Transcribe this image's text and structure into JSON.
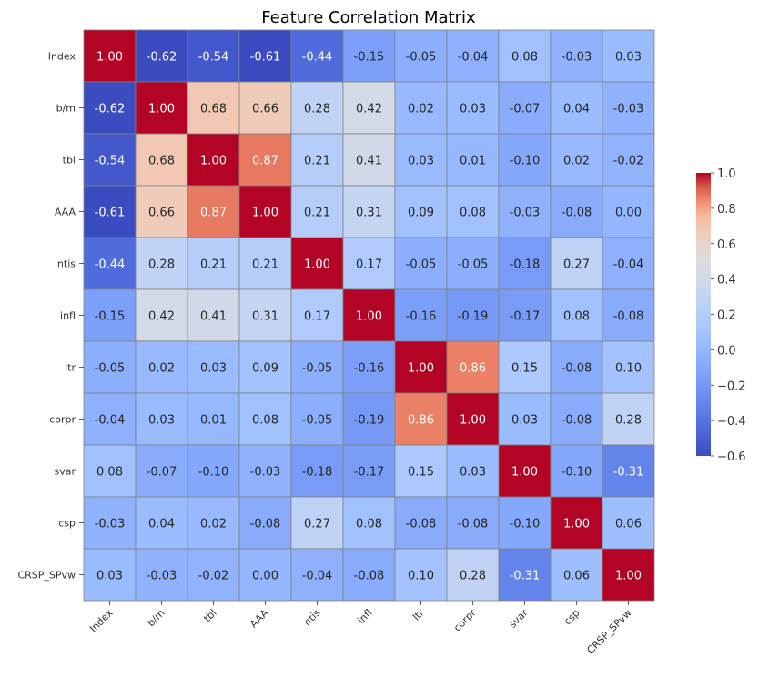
{
  "chart_data": {
    "type": "heatmap",
    "title": "Feature Correlation Matrix",
    "labels": [
      "Index",
      "b/m",
      "tbl",
      "AAA",
      "ntis",
      "infl",
      "ltr",
      "corpr",
      "svar",
      "csp",
      "CRSP_SPvw"
    ],
    "values": [
      [
        1.0,
        -0.62,
        -0.54,
        -0.61,
        -0.44,
        -0.15,
        -0.05,
        -0.04,
        0.08,
        -0.03,
        0.03
      ],
      [
        -0.62,
        1.0,
        0.68,
        0.66,
        0.28,
        0.42,
        0.02,
        0.03,
        -0.07,
        0.04,
        -0.03
      ],
      [
        -0.54,
        0.68,
        1.0,
        0.87,
        0.21,
        0.41,
        0.03,
        0.01,
        -0.1,
        0.02,
        -0.02
      ],
      [
        -0.61,
        0.66,
        0.87,
        1.0,
        0.21,
        0.31,
        0.09,
        0.08,
        -0.03,
        -0.08,
        -0.0
      ],
      [
        -0.44,
        0.28,
        0.21,
        0.21,
        1.0,
        0.17,
        -0.05,
        -0.05,
        -0.18,
        0.27,
        -0.04
      ],
      [
        -0.15,
        0.42,
        0.41,
        0.31,
        0.17,
        1.0,
        -0.16,
        -0.19,
        -0.17,
        0.08,
        -0.08
      ],
      [
        -0.05,
        0.02,
        0.03,
        0.09,
        -0.05,
        -0.16,
        1.0,
        0.86,
        0.15,
        -0.08,
        0.1
      ],
      [
        -0.04,
        0.03,
        0.01,
        0.08,
        -0.05,
        -0.19,
        0.86,
        1.0,
        0.03,
        -0.08,
        0.28
      ],
      [
        0.08,
        -0.07,
        -0.1,
        -0.03,
        -0.18,
        -0.17,
        0.15,
        0.03,
        1.0,
        -0.1,
        -0.31
      ],
      [
        -0.03,
        0.04,
        0.02,
        -0.08,
        0.27,
        0.08,
        -0.08,
        -0.08,
        -0.1,
        1.0,
        0.06
      ],
      [
        0.03,
        -0.03,
        -0.02,
        -0.0,
        -0.04,
        -0.08,
        0.1,
        0.28,
        -0.31,
        0.06,
        1.0
      ]
    ],
    "colormap": "coolwarm",
    "vmin": -0.6,
    "vmax": 1.0,
    "colorbar_ticks": [
      1.0,
      0.8,
      0.6,
      0.4,
      0.2,
      0.0,
      -0.2,
      -0.4,
      -0.6
    ],
    "colorbar_tick_labels": [
      "1.0",
      "0.8",
      "0.6",
      "0.4",
      "0.2",
      "0.0",
      "−0.2",
      "−0.4",
      "−0.6"
    ],
    "cell_border_color": "#808080",
    "annotate": true
  }
}
